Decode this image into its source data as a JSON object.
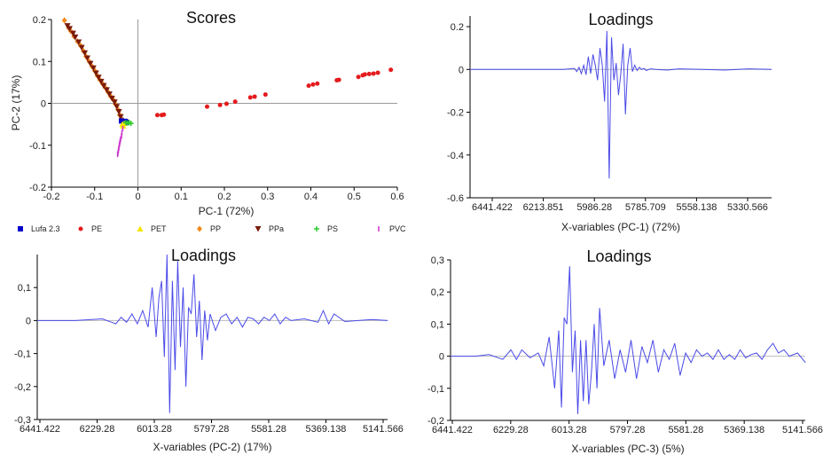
{
  "colors": {
    "PE": "#e41a1c",
    "PET": "#f5e400",
    "PP": "#f28a1c",
    "PPa": "#7a1a0a",
    "PS": "#2ecc2e",
    "PVC": "#cc33cc",
    "Lufa 2.3": "#0000cc",
    "loading_line": "#4a4ae8"
  },
  "chart_data": [
    {
      "id": "scores",
      "type": "scatter",
      "title": "Scores",
      "xlabel": "PC-1 (72%)",
      "ylabel": "PC-2 (17%)",
      "xlim": [
        -0.2,
        0.6
      ],
      "ylim": [
        -0.2,
        0.2
      ],
      "xticks": [
        "-0.2",
        "-0.1",
        "0",
        "0.1",
        "0.2",
        "0.3",
        "0.4",
        "0.5",
        "0.6"
      ],
      "yticks": [
        "-0.2",
        "-0.1",
        "0",
        "0.1",
        "0.2"
      ],
      "legend": [
        "Lufa 2.3",
        "PE",
        "PET",
        "PP",
        "PPa",
        "PS",
        "PVC"
      ],
      "series": [
        {
          "name": "PE",
          "marker": "circle",
          "points": [
            [
              0.045,
              -0.028
            ],
            [
              0.055,
              -0.028
            ],
            [
              0.06,
              -0.027
            ],
            [
              0.16,
              -0.008
            ],
            [
              0.19,
              -0.004
            ],
            [
              0.205,
              -0.001
            ],
            [
              0.225,
              0.004
            ],
            [
              0.26,
              0.014
            ],
            [
              0.27,
              0.016
            ],
            [
              0.295,
              0.021
            ],
            [
              0.395,
              0.042
            ],
            [
              0.405,
              0.045
            ],
            [
              0.415,
              0.047
            ],
            [
              0.46,
              0.055
            ],
            [
              0.465,
              0.056
            ],
            [
              0.51,
              0.063
            ],
            [
              0.52,
              0.067
            ],
            [
              0.525,
              0.069
            ],
            [
              0.535,
              0.07
            ],
            [
              0.545,
              0.071
            ],
            [
              0.555,
              0.073
            ],
            [
              0.585,
              0.08
            ]
          ]
        },
        {
          "name": "PP",
          "marker": "diamond",
          "points": [
            [
              -0.17,
              0.198
            ],
            [
              -0.16,
              0.18
            ],
            [
              -0.155,
              0.172
            ],
            [
              -0.148,
              0.16
            ],
            [
              -0.14,
              0.148
            ],
            [
              -0.133,
              0.138
            ],
            [
              -0.126,
              0.125
            ],
            [
              -0.12,
              0.112
            ],
            [
              -0.113,
              0.1
            ],
            [
              -0.106,
              0.088
            ],
            [
              -0.1,
              0.078
            ],
            [
              -0.094,
              0.066
            ],
            [
              -0.088,
              0.056
            ],
            [
              -0.082,
              0.047
            ],
            [
              -0.076,
              0.038
            ],
            [
              -0.07,
              0.028
            ],
            [
              -0.064,
              0.018
            ],
            [
              -0.058,
              0.01
            ],
            [
              -0.052,
              -0.002
            ],
            [
              -0.046,
              -0.015
            ],
            [
              -0.042,
              -0.028
            ],
            [
              -0.038,
              -0.036
            ]
          ]
        },
        {
          "name": "PPa",
          "marker": "triangle-down",
          "points": [
            [
              -0.163,
              0.185
            ],
            [
              -0.158,
              0.178
            ],
            [
              -0.15,
              0.167
            ],
            [
              -0.145,
              0.158
            ],
            [
              -0.137,
              0.146
            ],
            [
              -0.13,
              0.133
            ],
            [
              -0.123,
              0.12
            ],
            [
              -0.117,
              0.108
            ],
            [
              -0.11,
              0.095
            ],
            [
              -0.103,
              0.084
            ],
            [
              -0.097,
              0.072
            ],
            [
              -0.091,
              0.062
            ],
            [
              -0.085,
              0.052
            ],
            [
              -0.079,
              0.042
            ],
            [
              -0.072,
              0.032
            ],
            [
              -0.066,
              0.022
            ],
            [
              -0.06,
              0.012
            ],
            [
              -0.054,
              0.003
            ],
            [
              -0.049,
              -0.008
            ],
            [
              -0.044,
              -0.02
            ],
            [
              -0.04,
              -0.032
            ]
          ]
        },
        {
          "name": "Lufa 2.3",
          "marker": "square",
          "points": [
            [
              -0.038,
              -0.042
            ],
            [
              -0.033,
              -0.044
            ],
            [
              -0.03,
              -0.043
            ],
            [
              -0.027,
              -0.045
            ]
          ]
        },
        {
          "name": "PET",
          "marker": "triangle-up",
          "points": [
            [
              -0.036,
              -0.05
            ],
            [
              -0.032,
              -0.048
            ],
            [
              -0.034,
              -0.054
            ]
          ]
        },
        {
          "name": "PS",
          "marker": "plus",
          "points": [
            [
              -0.028,
              -0.046
            ],
            [
              -0.024,
              -0.047
            ],
            [
              -0.02,
              -0.046
            ],
            [
              -0.016,
              -0.048
            ]
          ]
        },
        {
          "name": "PVC",
          "marker": "bar",
          "points": [
            [
              -0.035,
              -0.06
            ],
            [
              -0.037,
              -0.07
            ],
            [
              -0.038,
              -0.078
            ],
            [
              -0.04,
              -0.085
            ],
            [
              -0.041,
              -0.09
            ],
            [
              -0.042,
              -0.095
            ],
            [
              -0.043,
              -0.1
            ],
            [
              -0.044,
              -0.106
            ],
            [
              -0.045,
              -0.112
            ],
            [
              -0.046,
              -0.118
            ],
            [
              -0.047,
              -0.122
            ]
          ]
        }
      ]
    },
    {
      "id": "loadings1",
      "type": "line",
      "title": "Loadings",
      "xlabel": "X-variables (PC-1) (72%)",
      "ylabel": "",
      "xlim": [
        6500,
        5200
      ],
      "ylim": [
        -0.6,
        0.25
      ],
      "xtick_labels": [
        "6441.422",
        "6213.851",
        "5986.28",
        "5785.709",
        "5558.138",
        "5330.566"
      ],
      "yticks": [
        "0.2",
        "0",
        "-0.2",
        "-0.4",
        "-0.6"
      ],
      "series": [
        {
          "x": [
            6500,
            6200,
            6100,
            6050,
            6040,
            6030,
            6020,
            6010,
            6000,
            5990,
            5980,
            5970,
            5960,
            5950,
            5940,
            5930,
            5920,
            5910,
            5900,
            5890,
            5880,
            5870,
            5860,
            5850,
            5840,
            5830,
            5820,
            5810,
            5800,
            5790,
            5780,
            5770,
            5760,
            5750,
            5740,
            5730,
            5720,
            5700,
            5650,
            5600,
            5500,
            5400,
            5300,
            5200
          ],
          "y": [
            0,
            0,
            0,
            0.005,
            -0.01,
            0.01,
            -0.02,
            0.02,
            -0.025,
            0.06,
            -0.02,
            0.07,
            0.02,
            -0.05,
            0.1,
            0.02,
            -0.15,
            0.18,
            -0.51,
            0.15,
            -0.05,
            0.03,
            -0.12,
            -0.02,
            0.12,
            -0.21,
            0.02,
            0.1,
            -0.01,
            0.02,
            -0.005,
            0.01,
            0,
            0.005,
            -0.005,
            0,
            0.003,
            0,
            -0.003,
            0.003,
            0,
            -0.003,
            0.003,
            0
          ]
        }
      ]
    },
    {
      "id": "loadings2",
      "type": "line",
      "title": "Loadings",
      "xlabel": "X-variables (PC-2) (17%)",
      "ylabel": "",
      "xlim": [
        6441.422,
        5141.566
      ],
      "ylim": [
        -0.3,
        0.2
      ],
      "xtick_labels": [
        "6441.422",
        "6229.28",
        "6013.28",
        "5797.28",
        "5581.28",
        "5369.138",
        "5141.566"
      ],
      "yticks": [
        "0,1",
        "0",
        "-0,1",
        "-0,2",
        "-0,3"
      ],
      "series": [
        {
          "x": [
            6441,
            6300,
            6200,
            6150,
            6130,
            6110,
            6090,
            6070,
            6050,
            6030,
            6015,
            6000,
            5990,
            5980,
            5970,
            5960,
            5950,
            5940,
            5930,
            5920,
            5910,
            5900,
            5890,
            5880,
            5870,
            5860,
            5850,
            5840,
            5830,
            5820,
            5810,
            5800,
            5780,
            5760,
            5740,
            5720,
            5700,
            5680,
            5660,
            5640,
            5620,
            5600,
            5580,
            5560,
            5540,
            5520,
            5500,
            5450,
            5400,
            5380,
            5360,
            5340,
            5300,
            5200,
            5141
          ],
          "y": [
            0,
            0,
            0.005,
            -0.01,
            0.01,
            -0.005,
            0.02,
            -0.01,
            0.03,
            -0.02,
            0.1,
            -0.05,
            0.07,
            0.12,
            -0.11,
            0.2,
            -0.28,
            0.12,
            -0.15,
            0.18,
            -0.08,
            0.1,
            -0.2,
            0.04,
            0.02,
            0.14,
            -0.05,
            0.06,
            -0.12,
            0.03,
            -0.06,
            0.02,
            -0.03,
            0.01,
            0.02,
            -0.01,
            0.01,
            -0.02,
            0.01,
            0.005,
            -0.01,
            0.01,
            0,
            0.02,
            -0.01,
            0.01,
            0,
            0.005,
            -0.005,
            0.03,
            -0.01,
            0.02,
            -0.003,
            0.003,
            0
          ]
        }
      ]
    },
    {
      "id": "loadings3",
      "type": "line",
      "title": "Loadings",
      "xlabel": "X-variables (PC-3) (5%)",
      "ylabel": "",
      "xlim": [
        6441.422,
        5141.566
      ],
      "ylim": [
        -0.2,
        0.3
      ],
      "xtick_labels": [
        "6441.422",
        "6229.28",
        "6013.28",
        "5797.28",
        "5581.28",
        "5369.138",
        "5141.566"
      ],
      "yticks": [
        "0,3",
        "0,2",
        "0,1",
        "0",
        "-0,1",
        "-0,2"
      ],
      "series": [
        {
          "x": [
            6441,
            6350,
            6300,
            6250,
            6220,
            6200,
            6180,
            6150,
            6120,
            6100,
            6080,
            6060,
            6045,
            6035,
            6025,
            6015,
            6005,
            5995,
            5985,
            5975,
            5965,
            5955,
            5945,
            5935,
            5925,
            5915,
            5905,
            5895,
            5880,
            5860,
            5840,
            5820,
            5800,
            5780,
            5760,
            5740,
            5720,
            5700,
            5680,
            5660,
            5640,
            5620,
            5600,
            5580,
            5560,
            5540,
            5520,
            5500,
            5480,
            5460,
            5440,
            5420,
            5400,
            5380,
            5360,
            5340,
            5320,
            5300,
            5280,
            5260,
            5240,
            5220,
            5200,
            5170,
            5141
          ],
          "y": [
            0,
            0,
            0.005,
            -0.01,
            0.02,
            -0.01,
            0.02,
            -0.005,
            0.01,
            -0.03,
            0.06,
            -0.1,
            0.08,
            -0.16,
            0.12,
            0.1,
            0.28,
            -0.05,
            0.08,
            -0.18,
            0.05,
            -0.14,
            0.05,
            -0.15,
            -0.05,
            0.1,
            -0.1,
            0.15,
            -0.03,
            0.05,
            -0.07,
            0.02,
            -0.05,
            0.05,
            -0.07,
            0.03,
            -0.02,
            0.05,
            -0.05,
            0.02,
            -0.01,
            0.04,
            -0.06,
            0.01,
            -0.02,
            0.02,
            0,
            0.01,
            -0.01,
            0.02,
            -0.01,
            0.005,
            -0.01,
            0.02,
            -0.005,
            0.005,
            0.01,
            -0.01,
            0.02,
            0.04,
            0.01,
            0.02,
            0,
            0.01,
            -0.02
          ]
        }
      ]
    }
  ]
}
